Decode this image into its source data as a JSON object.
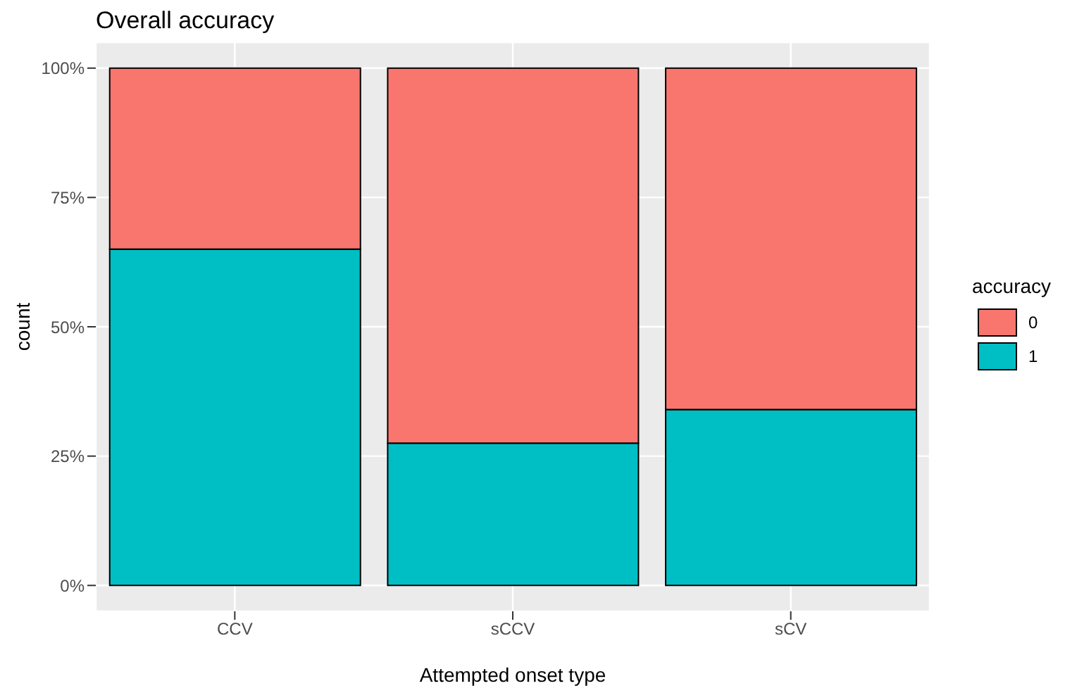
{
  "chart_data": {
    "type": "bar",
    "title": "Overall accuracy",
    "xlabel": "Attempted onset type",
    "ylabel": "count",
    "legend_title": "accuracy",
    "categories": [
      "CCV",
      "sCCV",
      "sCV"
    ],
    "stacked": true,
    "series": [
      {
        "name": "1",
        "color": "#00bfc4",
        "values": [
          65,
          27.5,
          34
        ]
      },
      {
        "name": "0",
        "color": "#f8766d",
        "values": [
          35,
          72.5,
          66
        ]
      }
    ],
    "ylim": [
      -5,
      105
    ],
    "yticks": [
      {
        "value": 0,
        "label": "0%"
      },
      {
        "value": 25,
        "label": "25%"
      },
      {
        "value": 50,
        "label": "50%"
      },
      {
        "value": 75,
        "label": "75%"
      },
      {
        "value": 100,
        "label": "100%"
      }
    ],
    "grid": true,
    "legend": "right"
  }
}
